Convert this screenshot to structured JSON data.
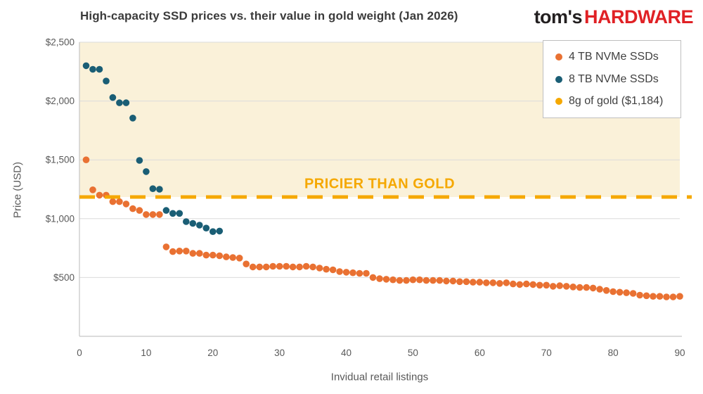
{
  "header": {
    "logo": {
      "prefix": "tom's",
      "suffix": "HARDWARE"
    }
  },
  "colors": {
    "orange_series": "#E97132",
    "blue_series": "#1A5E75",
    "gold": "#F5A800",
    "gold_zone_fill": "#FAF1D9",
    "gridline": "#DBDBDB",
    "axis_line": "#C6C6C6",
    "tick_text": "#595959",
    "title_text": "#3B3B3B",
    "logo_black": "#231F20",
    "logo_red": "#E02125"
  },
  "chart_data": {
    "type": "scatter",
    "title": "High-capacity SSD prices vs. their value in gold weight (Jan 2026)",
    "xlabel": "Invidual retail listings",
    "ylabel": "Price (USD)",
    "xlim": [
      0,
      90
    ],
    "ylim": [
      0,
      2500
    ],
    "grid": "horizontal-only",
    "legend_position": "top-right",
    "x_ticks": [
      0,
      10,
      20,
      30,
      40,
      50,
      60,
      70,
      80,
      90
    ],
    "y_ticks": [
      {
        "value": 500,
        "label": "$500"
      },
      {
        "value": 1000,
        "label": "$1,000"
      },
      {
        "value": 1500,
        "label": "$1,500"
      },
      {
        "value": 2000,
        "label": "$2,000"
      },
      {
        "value": 2500,
        "label": "$2,500"
      }
    ],
    "shaded_region": {
      "above_value": 1184,
      "fill": "#FAF1D9",
      "meaning": "zone where SSDs cost more than 8g of gold"
    },
    "annotation": {
      "text": "PRICIER THAN GOLD",
      "color": "#F5A800",
      "x": 45,
      "y": 1300
    },
    "series": [
      {
        "name": "4 TB NVMe SSDs",
        "color": "#E97132",
        "marker": "circle",
        "x": [
          1,
          2,
          3,
          4,
          5,
          6,
          7,
          8,
          9,
          10,
          11,
          12,
          13,
          14,
          15,
          16,
          17,
          18,
          19,
          20,
          21,
          22,
          23,
          24,
          25,
          26,
          27,
          28,
          29,
          30,
          31,
          32,
          33,
          34,
          35,
          36,
          37,
          38,
          39,
          40,
          41,
          42,
          43,
          44,
          45,
          46,
          47,
          48,
          49,
          50,
          51,
          52,
          53,
          54,
          55,
          56,
          57,
          58,
          59,
          60,
          61,
          62,
          63,
          64,
          65,
          66,
          67,
          68,
          69,
          70,
          71,
          72,
          73,
          74,
          75,
          76,
          77,
          78,
          79,
          80,
          81,
          82,
          83,
          84,
          85,
          86,
          87,
          88,
          89,
          90
        ],
        "y": [
          1500,
          1245,
          1200,
          1200,
          1145,
          1145,
          1125,
          1085,
          1070,
          1035,
          1035,
          1035,
          760,
          720,
          725,
          725,
          705,
          705,
          690,
          690,
          685,
          675,
          670,
          665,
          615,
          590,
          590,
          590,
          595,
          595,
          595,
          590,
          590,
          595,
          590,
          580,
          570,
          565,
          550,
          545,
          540,
          535,
          535,
          500,
          490,
          485,
          480,
          475,
          475,
          480,
          480,
          475,
          475,
          475,
          470,
          470,
          465,
          465,
          460,
          460,
          455,
          455,
          450,
          455,
          445,
          440,
          445,
          440,
          435,
          435,
          425,
          430,
          425,
          420,
          415,
          415,
          410,
          400,
          390,
          380,
          375,
          370,
          365,
          350,
          345,
          340,
          340,
          335,
          335,
          340
        ]
      },
      {
        "name": "8 TB NVMe SSDs",
        "color": "#1A5E75",
        "marker": "circle",
        "x": [
          1,
          2,
          3,
          4,
          5,
          6,
          7,
          8,
          9,
          10,
          11,
          12,
          13,
          14,
          15,
          16,
          17,
          18,
          19,
          20,
          21
        ],
        "y": [
          2300,
          2270,
          2270,
          2170,
          2030,
          1985,
          1985,
          1855,
          1495,
          1400,
          1255,
          1250,
          1070,
          1045,
          1045,
          975,
          960,
          945,
          920,
          890,
          895
        ]
      },
      {
        "name": "8g of gold ($1,184)",
        "color": "#F5A800",
        "marker": "circle",
        "style": "dashed-horizontal-line",
        "value": 1184
      }
    ]
  }
}
